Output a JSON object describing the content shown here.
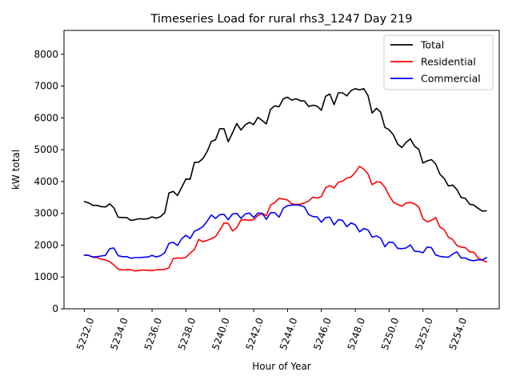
{
  "chart_data": {
    "type": "line",
    "title": "Timeseries Load for rural rhs3_1247  Day 219",
    "xlabel": "Hour of Year",
    "ylabel": "kW total",
    "xlim": [
      5230.8,
      5256.5
    ],
    "ylim": [
      0,
      8750
    ],
    "x_start": 5232.0,
    "x_step": 0.25,
    "xticks": [
      5232,
      5234,
      5236,
      5238,
      5240,
      5242,
      5244,
      5246,
      5248,
      5250,
      5252,
      5254
    ],
    "xtick_labels": [
      "5232.0",
      "5234.0",
      "5236.0",
      "5238.0",
      "5240.0",
      "5242.0",
      "5244.0",
      "5246.0",
      "5248.0",
      "5250.0",
      "5252.0",
      "5254.0"
    ],
    "yticks": [
      0,
      1000,
      2000,
      3000,
      4000,
      5000,
      6000,
      7000,
      8000
    ],
    "ytick_labels": [
      "0",
      "1000",
      "2000",
      "3000",
      "4000",
      "5000",
      "6000",
      "7000",
      "8000"
    ],
    "legend_position": "top-right",
    "series": [
      {
        "name": "Total",
        "color": "#000000",
        "values": [
          3370,
          3330,
          3250,
          3250,
          3210,
          3200,
          3300,
          3170,
          2880,
          2870,
          2870,
          2780,
          2800,
          2830,
          2820,
          2830,
          2890,
          2850,
          2900,
          3020,
          3640,
          3690,
          3560,
          3820,
          4080,
          4070,
          4600,
          4610,
          4720,
          4940,
          5260,
          5310,
          5660,
          5660,
          5250,
          5530,
          5820,
          5620,
          5780,
          5860,
          5790,
          6020,
          5920,
          5810,
          6270,
          6380,
          6350,
          6600,
          6650,
          6560,
          6600,
          6540,
          6530,
          6360,
          6400,
          6370,
          6240,
          6680,
          6750,
          6420,
          6790,
          6790,
          6690,
          6860,
          6920,
          6880,
          6920,
          6700,
          6150,
          6300,
          6180,
          5700,
          5630,
          5470,
          5180,
          5070,
          5230,
          5340,
          5110,
          5010,
          4580,
          4650,
          4690,
          4550,
          4230,
          4100,
          3860,
          3890,
          3750,
          3500,
          3470,
          3290,
          3260,
          3160,
          3070,
          3080
        ]
      },
      {
        "name": "Residential",
        "color": "#ff0000",
        "values": [
          1690,
          1680,
          1620,
          1610,
          1560,
          1540,
          1480,
          1380,
          1250,
          1220,
          1230,
          1230,
          1190,
          1210,
          1220,
          1210,
          1200,
          1230,
          1230,
          1240,
          1290,
          1580,
          1600,
          1590,
          1620,
          1750,
          1860,
          2180,
          2110,
          2150,
          2200,
          2270,
          2470,
          2700,
          2680,
          2450,
          2550,
          2790,
          2800,
          2780,
          2800,
          2930,
          3000,
          2930,
          3260,
          3340,
          3470,
          3450,
          3420,
          3300,
          3280,
          3290,
          3330,
          3390,
          3510,
          3480,
          3530,
          3810,
          3870,
          3800,
          3980,
          4010,
          4110,
          4140,
          4290,
          4480,
          4390,
          4240,
          3900,
          3990,
          3980,
          3820,
          3560,
          3350,
          3280,
          3220,
          3330,
          3340,
          3300,
          3200,
          2830,
          2730,
          2780,
          2870,
          2570,
          2490,
          2250,
          2180,
          1990,
          1940,
          1920,
          1790,
          1780,
          1600,
          1530,
          1470
        ]
      },
      {
        "name": "Commercial",
        "color": "#0000ff",
        "values": [
          1690,
          1680,
          1630,
          1640,
          1660,
          1680,
          1890,
          1910,
          1670,
          1640,
          1640,
          1590,
          1610,
          1610,
          1620,
          1630,
          1680,
          1630,
          1670,
          1760,
          2060,
          2090,
          1990,
          2200,
          2310,
          2210,
          2440,
          2500,
          2580,
          2750,
          2950,
          2840,
          2960,
          2970,
          2800,
          2980,
          3000,
          2840,
          2980,
          3010,
          2870,
          3010,
          3000,
          2810,
          3020,
          3020,
          2880,
          3160,
          3240,
          3260,
          3270,
          3250,
          3200,
          2960,
          2900,
          2890,
          2720,
          2870,
          2880,
          2640,
          2800,
          2780,
          2580,
          2700,
          2640,
          2420,
          2520,
          2480,
          2250,
          2290,
          2220,
          1950,
          2100,
          2080,
          1900,
          1890,
          1910,
          2010,
          1810,
          1800,
          1760,
          1940,
          1920,
          1690,
          1650,
          1630,
          1620,
          1720,
          1790,
          1600,
          1600,
          1530,
          1510,
          1540,
          1540,
          1610
        ]
      }
    ]
  }
}
